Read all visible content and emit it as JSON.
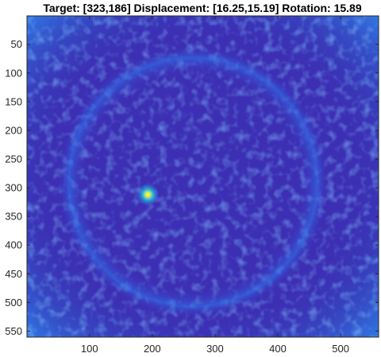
{
  "chart_data": {
    "type": "heatmap",
    "title": "Target: [323,186]   Displacement: [16.25,15.19]   Rotation: 15.89",
    "xlabel": "",
    "ylabel": "",
    "xlim": [
      0.5,
      560.5
    ],
    "ylim": [
      0.5,
      560.5
    ],
    "y_reversed": true,
    "x_ticks": [
      100,
      200,
      300,
      400,
      500
    ],
    "x_tick_labels": [
      "100",
      "200",
      "300",
      "400",
      "500"
    ],
    "y_ticks": [
      50,
      100,
      150,
      200,
      250,
      300,
      350,
      400,
      450,
      500,
      550
    ],
    "y_tick_labels": [
      "50",
      "100",
      "150",
      "200",
      "250",
      "300",
      "350",
      "400",
      "450",
      "500",
      "550"
    ],
    "grid": false,
    "colormap": "parula",
    "colors": {
      "low": "#3d26a8",
      "mid_low": "#3a4be0",
      "mid": "#2b84f5",
      "mid_high": "#1ab6d6",
      "high": "#a8e1a0",
      "peak": "#f9fb0e"
    },
    "features": {
      "bright_peak": {
        "x": 193,
        "y": 312
      },
      "ring_center": {
        "x": 265,
        "y": 290
      },
      "ring_radius": 215
    }
  }
}
